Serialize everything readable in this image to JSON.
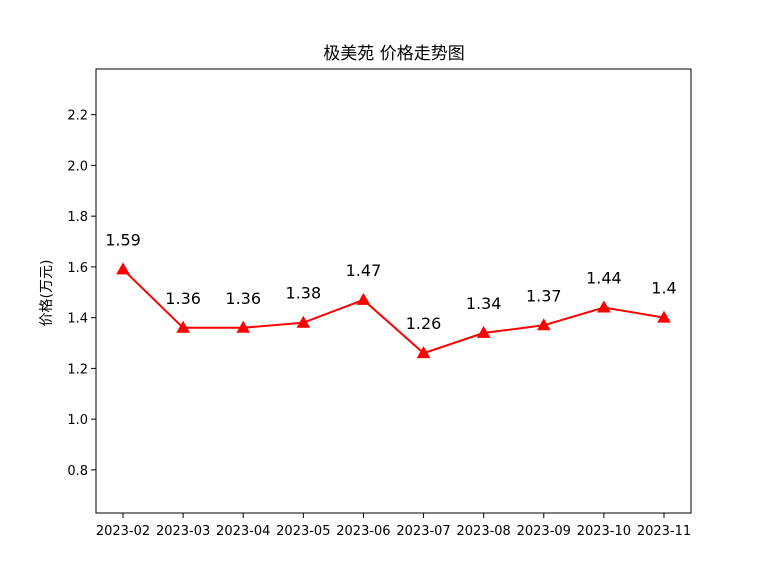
{
  "chart_data": {
    "type": "line",
    "title": "极美苑 价格走势图",
    "xlabel": "",
    "ylabel": "价格(万元)",
    "categories": [
      "2023-02",
      "2023-03",
      "2023-04",
      "2023-05",
      "2023-06",
      "2023-07",
      "2023-08",
      "2023-09",
      "2023-10",
      "2023-11"
    ],
    "series": [
      {
        "values": [
          1.59,
          1.36,
          1.36,
          1.38,
          1.47,
          1.26,
          1.34,
          1.37,
          1.44,
          1.4
        ],
        "labels": [
          "1.59",
          "1.36",
          "1.36",
          "1.38",
          "1.47",
          "1.26",
          "1.34",
          "1.37",
          "1.44",
          "1.4"
        ],
        "color": "#ff0000",
        "marker": "triangle-up"
      }
    ],
    "ylim": [
      0.63,
      2.38
    ],
    "yticks": [
      0.8,
      1.0,
      1.2,
      1.4,
      1.6,
      1.8,
      2.0,
      2.2
    ],
    "ytick_labels": [
      "0.8",
      "1.0",
      "1.2",
      "1.4",
      "1.6",
      "1.8",
      "2.0",
      "2.2"
    ],
    "grid": false,
    "legend": false
  }
}
